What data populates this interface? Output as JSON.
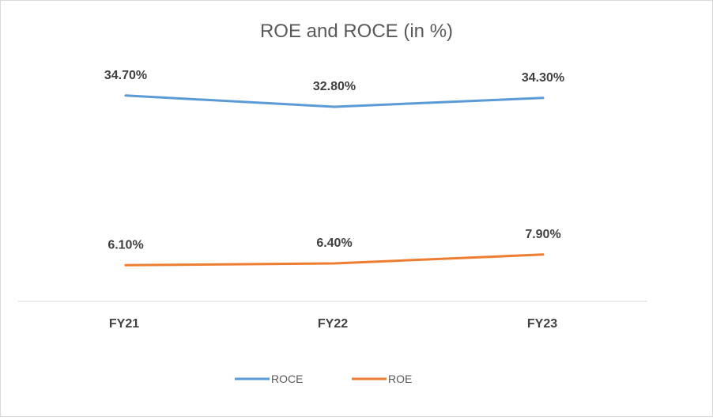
{
  "chart_data": {
    "type": "line",
    "title": "ROE and ROCE (in %)",
    "categories": [
      "FY21",
      "FY22",
      "FY23"
    ],
    "series": [
      {
        "name": "ROCE",
        "color": "#5b9bd5",
        "values": [
          34.7,
          32.8,
          34.3
        ],
        "labels": [
          "34.70%",
          "32.80%",
          "34.30%"
        ]
      },
      {
        "name": "ROE",
        "color": "#ed7d31",
        "values": [
          6.1,
          6.4,
          7.9
        ],
        "labels": [
          "6.10%",
          "6.40%",
          "7.90%"
        ]
      }
    ],
    "xlabel": "",
    "ylabel": "",
    "ylim": [
      0,
      40
    ],
    "grid": false,
    "legend": "bottom"
  }
}
